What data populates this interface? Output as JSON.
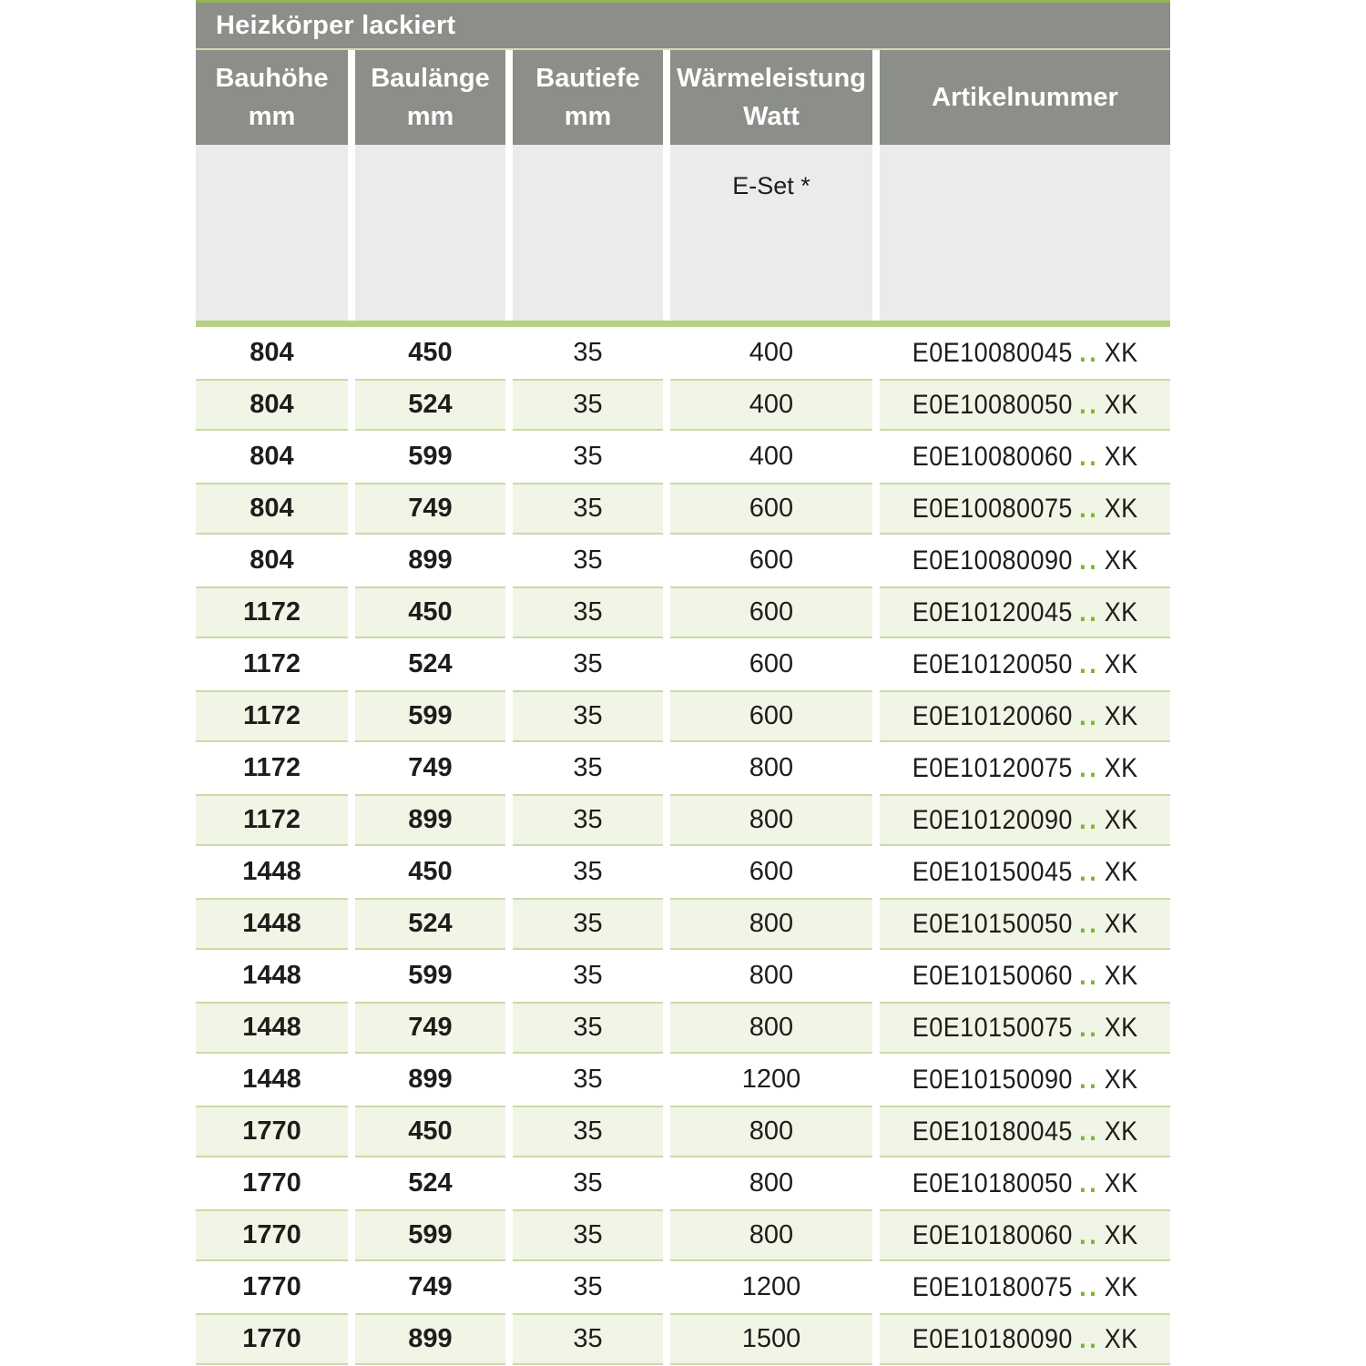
{
  "title": "Heizkörper lackiert",
  "columns": [
    {
      "label": "Bauhöhe",
      "unit": "mm"
    },
    {
      "label": "Baulänge",
      "unit": "mm"
    },
    {
      "label": "Bautiefe",
      "unit": "mm"
    },
    {
      "label": "Wärmeleistung",
      "unit": "Watt"
    },
    {
      "label": "Artikelnummer",
      "unit": ""
    }
  ],
  "subheader": {
    "eset_label": "E-Set *"
  },
  "colors": {
    "header_gray": "#8b8e89",
    "subheader_gray": "#ebebeb",
    "row_green_bg": "#f0f5e6",
    "row_green_border": "#c9dba6",
    "divider_green": "#b5d182",
    "top_border_green": "#93b450",
    "thin_line_green": "#d4dcb0",
    "dots_green": "#76b82a",
    "text_color": "#1d1d1b"
  },
  "rows": [
    {
      "bauhoehe": "804",
      "baulaenge": "450",
      "bautiefe": "35",
      "watt": "400",
      "artikel_prefix": "E0E10080045",
      "artikel_dots": "..",
      "artikel_suffix": "XK"
    },
    {
      "bauhoehe": "804",
      "baulaenge": "524",
      "bautiefe": "35",
      "watt": "400",
      "artikel_prefix": "E0E10080050",
      "artikel_dots": "..",
      "artikel_suffix": "XK"
    },
    {
      "bauhoehe": "804",
      "baulaenge": "599",
      "bautiefe": "35",
      "watt": "400",
      "artikel_prefix": "E0E10080060",
      "artikel_dots": "..",
      "artikel_suffix": "XK"
    },
    {
      "bauhoehe": "804",
      "baulaenge": "749",
      "bautiefe": "35",
      "watt": "600",
      "artikel_prefix": "E0E10080075",
      "artikel_dots": "..",
      "artikel_suffix": "XK"
    },
    {
      "bauhoehe": "804",
      "baulaenge": "899",
      "bautiefe": "35",
      "watt": "600",
      "artikel_prefix": "E0E10080090",
      "artikel_dots": "..",
      "artikel_suffix": "XK"
    },
    {
      "bauhoehe": "1172",
      "baulaenge": "450",
      "bautiefe": "35",
      "watt": "600",
      "artikel_prefix": "E0E10120045",
      "artikel_dots": "..",
      "artikel_suffix": "XK"
    },
    {
      "bauhoehe": "1172",
      "baulaenge": "524",
      "bautiefe": "35",
      "watt": "600",
      "artikel_prefix": "E0E10120050",
      "artikel_dots": "..",
      "artikel_suffix": "XK"
    },
    {
      "bauhoehe": "1172",
      "baulaenge": "599",
      "bautiefe": "35",
      "watt": "600",
      "artikel_prefix": "E0E10120060",
      "artikel_dots": "..",
      "artikel_suffix": "XK"
    },
    {
      "bauhoehe": "1172",
      "baulaenge": "749",
      "bautiefe": "35",
      "watt": "800",
      "artikel_prefix": "E0E10120075",
      "artikel_dots": "..",
      "artikel_suffix": "XK"
    },
    {
      "bauhoehe": "1172",
      "baulaenge": "899",
      "bautiefe": "35",
      "watt": "800",
      "artikel_prefix": "E0E10120090",
      "artikel_dots": "..",
      "artikel_suffix": "XK"
    },
    {
      "bauhoehe": "1448",
      "baulaenge": "450",
      "bautiefe": "35",
      "watt": "600",
      "artikel_prefix": "E0E10150045",
      "artikel_dots": "..",
      "artikel_suffix": "XK"
    },
    {
      "bauhoehe": "1448",
      "baulaenge": "524",
      "bautiefe": "35",
      "watt": "800",
      "artikel_prefix": "E0E10150050",
      "artikel_dots": "..",
      "artikel_suffix": "XK"
    },
    {
      "bauhoehe": "1448",
      "baulaenge": "599",
      "bautiefe": "35",
      "watt": "800",
      "artikel_prefix": "E0E10150060",
      "artikel_dots": "..",
      "artikel_suffix": "XK"
    },
    {
      "bauhoehe": "1448",
      "baulaenge": "749",
      "bautiefe": "35",
      "watt": "800",
      "artikel_prefix": "E0E10150075",
      "artikel_dots": "..",
      "artikel_suffix": "XK"
    },
    {
      "bauhoehe": "1448",
      "baulaenge": "899",
      "bautiefe": "35",
      "watt": "1200",
      "artikel_prefix": "E0E10150090",
      "artikel_dots": "..",
      "artikel_suffix": "XK"
    },
    {
      "bauhoehe": "1770",
      "baulaenge": "450",
      "bautiefe": "35",
      "watt": "800",
      "artikel_prefix": "E0E10180045",
      "artikel_dots": "..",
      "artikel_suffix": "XK"
    },
    {
      "bauhoehe": "1770",
      "baulaenge": "524",
      "bautiefe": "35",
      "watt": "800",
      "artikel_prefix": "E0E10180050",
      "artikel_dots": "..",
      "artikel_suffix": "XK"
    },
    {
      "bauhoehe": "1770",
      "baulaenge": "599",
      "bautiefe": "35",
      "watt": "800",
      "artikel_prefix": "E0E10180060",
      "artikel_dots": "..",
      "artikel_suffix": "XK"
    },
    {
      "bauhoehe": "1770",
      "baulaenge": "749",
      "bautiefe": "35",
      "watt": "1200",
      "artikel_prefix": "E0E10180075",
      "artikel_dots": "..",
      "artikel_suffix": "XK"
    },
    {
      "bauhoehe": "1770",
      "baulaenge": "899",
      "bautiefe": "35",
      "watt": "1500",
      "artikel_prefix": "E0E10180090",
      "artikel_dots": "..",
      "artikel_suffix": "XK"
    }
  ]
}
